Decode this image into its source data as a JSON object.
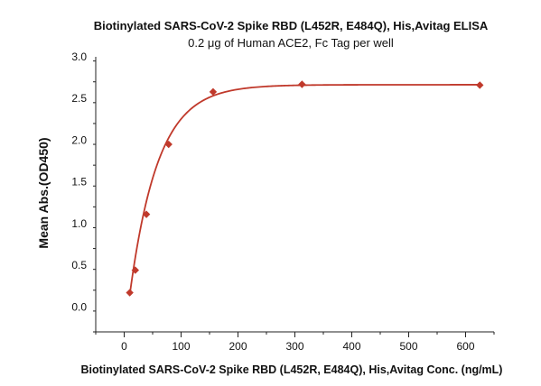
{
  "chart_data": {
    "type": "scatter",
    "title": "Biotinylated SARS-CoV-2 Spike RBD (L452R, E484Q), His,Avitag ELISA",
    "subtitle": "0.2 μg of Human ACE2, Fc Tag per well",
    "xlabel": "Biotinylated SARS-CoV-2 Spike RBD (L452R, E484Q), His,Avitag Conc. (ng/mL)",
    "ylabel": "Mean Abs.(OD450)",
    "xlim": [
      -50,
      650
    ],
    "ylim": [
      -0.3,
      3.0
    ],
    "xticks": [
      0,
      100,
      200,
      300,
      400,
      500,
      600
    ],
    "yticks": [
      0.0,
      0.5,
      1.0,
      1.5,
      2.0,
      2.5,
      3.0
    ],
    "ytick_labels": [
      "0.0",
      "0.5",
      "1.0",
      "1.5",
      "2.0",
      "2.5",
      "3.0"
    ],
    "grid": false,
    "series": [
      {
        "color": "#c0392b",
        "marker": "diamond",
        "x": [
          9.77,
          19.53,
          39.06,
          78.13,
          156.25,
          312.5,
          625
        ],
        "y": [
          0.17,
          0.44,
          1.11,
          1.95,
          2.58,
          2.67,
          2.66
        ]
      }
    ],
    "fit_curve": {
      "type": "exponential-saturation",
      "color": "#c0392b",
      "ymin": 0.0,
      "ymax": 2.665,
      "x0": 7.0,
      "k": 0.0201
    }
  }
}
